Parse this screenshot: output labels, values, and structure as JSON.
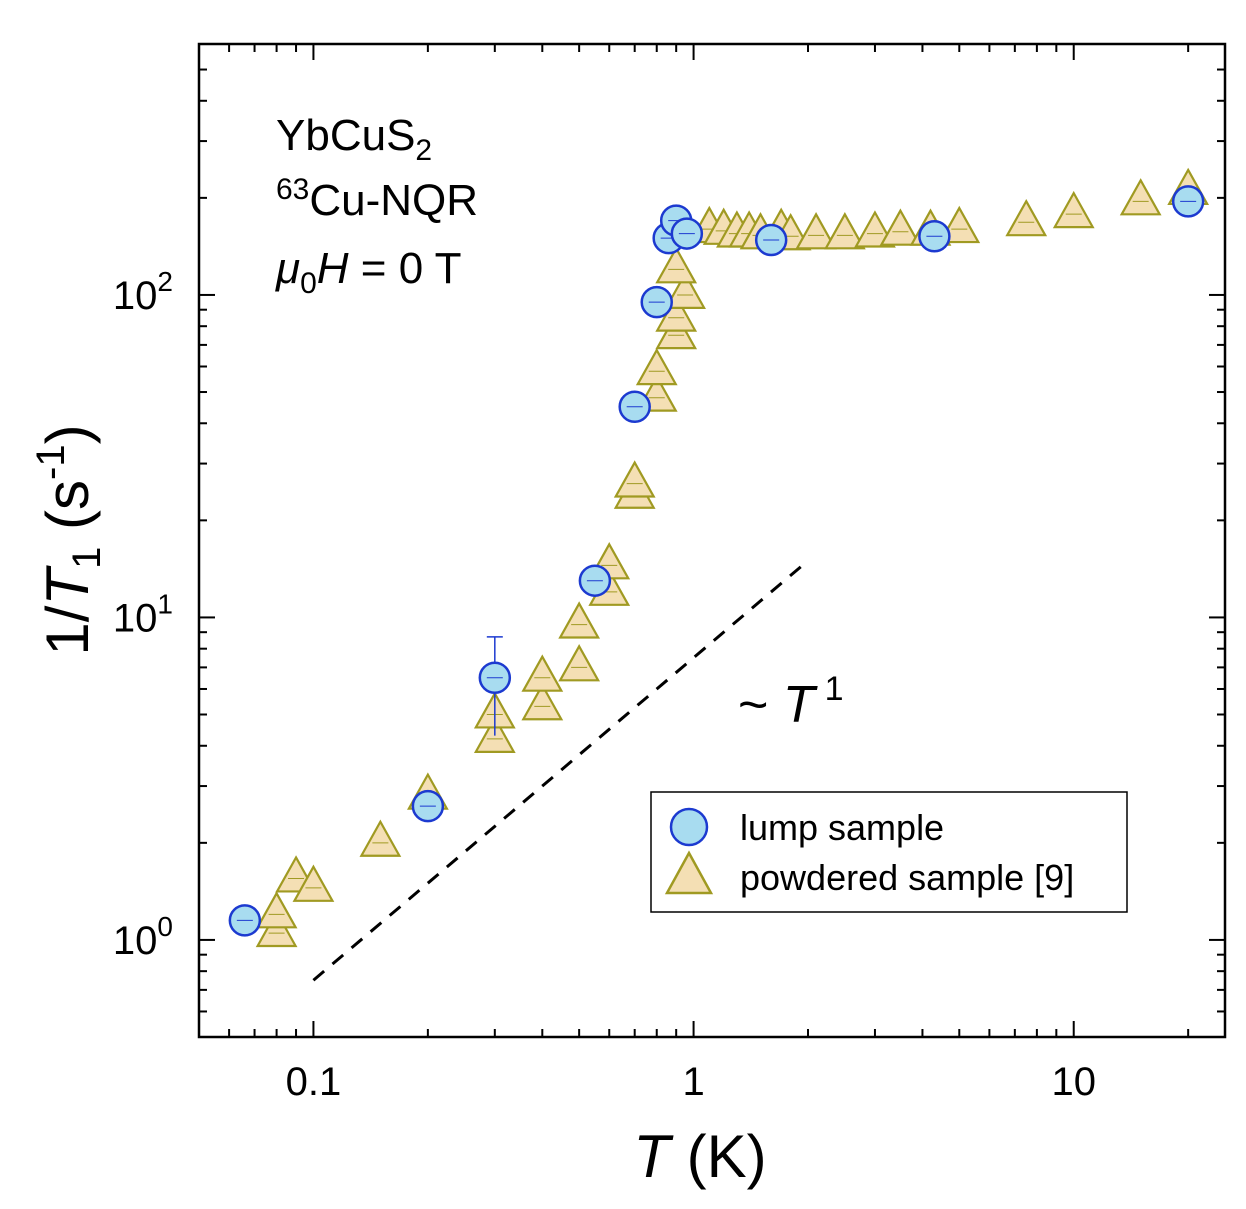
{
  "chart_data": {
    "type": "scatter",
    "x_scale": "log",
    "y_scale": "log",
    "xlim": [
      0.05,
      25
    ],
    "ylim": [
      0.5,
      600
    ],
    "xticks": [
      {
        "value": 0.1,
        "label": "0.1"
      },
      {
        "value": 1,
        "label": "1"
      },
      {
        "value": 10,
        "label": "10"
      }
    ],
    "yticks": [
      {
        "value": 1,
        "base": "10",
        "exp": "0"
      },
      {
        "value": 10,
        "base": "10",
        "exp": "1"
      },
      {
        "value": 100,
        "base": "10",
        "exp": "2"
      }
    ],
    "xlabel": {
      "var": "T",
      "unit": "(K)"
    },
    "ylabel": {
      "prefix": "1/",
      "var": "T",
      "sub": "1",
      "unit_pre": "(s",
      "unit_exp": "-1",
      "unit_post": ")"
    },
    "annotation_lines": [
      {
        "main": "YbCuS",
        "sub": "2"
      },
      {
        "sup": "63",
        "main": "Cu-NQR"
      },
      {
        "var": "μ",
        "sub": "0",
        "var2": "H",
        "rest": " = 0 T"
      }
    ],
    "guide_line": {
      "style": "dashed",
      "color": "#000000",
      "label_prefix": "~ ",
      "label_var": "T",
      "label_exp": "1",
      "points": [
        [
          0.1,
          0.75
        ],
        [
          2.0,
          15.0
        ]
      ]
    },
    "legend": {
      "position": "bottom-right"
    },
    "series": [
      {
        "name": "lump sample",
        "marker": "circle",
        "fill": "#a8dcf0",
        "stroke": "#1c3ad0",
        "points": [
          {
            "x": 0.066,
            "y": 1.15
          },
          {
            "x": 0.2,
            "y": 2.6
          },
          {
            "x": 0.3,
            "y": 6.5,
            "yerr": 2.2
          },
          {
            "x": 0.55,
            "y": 13
          },
          {
            "x": 0.7,
            "y": 45
          },
          {
            "x": 0.8,
            "y": 95
          },
          {
            "x": 0.86,
            "y": 150
          },
          {
            "x": 0.9,
            "y": 170
          },
          {
            "x": 0.96,
            "y": 155
          },
          {
            "x": 1.6,
            "y": 148
          },
          {
            "x": 4.3,
            "y": 152
          },
          {
            "x": 20,
            "y": 195
          }
        ]
      },
      {
        "name": "powdered sample [9]",
        "marker": "triangle",
        "fill": "#f4dfb4",
        "stroke": "#a09a22",
        "points": [
          {
            "x": 0.08,
            "y": 1.05
          },
          {
            "x": 0.08,
            "y": 1.2
          },
          {
            "x": 0.09,
            "y": 1.55
          },
          {
            "x": 0.1,
            "y": 1.45
          },
          {
            "x": 0.15,
            "y": 2.0
          },
          {
            "x": 0.2,
            "y": 2.8
          },
          {
            "x": 0.3,
            "y": 4.2
          },
          {
            "x": 0.3,
            "y": 5.0
          },
          {
            "x": 0.4,
            "y": 5.3
          },
          {
            "x": 0.4,
            "y": 6.5
          },
          {
            "x": 0.5,
            "y": 7.0
          },
          {
            "x": 0.5,
            "y": 9.5
          },
          {
            "x": 0.6,
            "y": 12.0
          },
          {
            "x": 0.6,
            "y": 14.5
          },
          {
            "x": 0.7,
            "y": 24
          },
          {
            "x": 0.7,
            "y": 26
          },
          {
            "x": 0.8,
            "y": 48
          },
          {
            "x": 0.8,
            "y": 58
          },
          {
            "x": 0.9,
            "y": 75
          },
          {
            "x": 0.9,
            "y": 85
          },
          {
            "x": 0.95,
            "y": 100
          },
          {
            "x": 0.9,
            "y": 120
          },
          {
            "x": 1.1,
            "y": 160
          },
          {
            "x": 1.2,
            "y": 158
          },
          {
            "x": 1.3,
            "y": 155
          },
          {
            "x": 1.4,
            "y": 155
          },
          {
            "x": 1.5,
            "y": 153
          },
          {
            "x": 1.7,
            "y": 158
          },
          {
            "x": 1.8,
            "y": 152
          },
          {
            "x": 2.1,
            "y": 153
          },
          {
            "x": 2.5,
            "y": 153
          },
          {
            "x": 3.0,
            "y": 155
          },
          {
            "x": 3.5,
            "y": 157
          },
          {
            "x": 4.2,
            "y": 157
          },
          {
            "x": 5.0,
            "y": 160
          },
          {
            "x": 7.5,
            "y": 168
          },
          {
            "x": 10,
            "y": 178
          },
          {
            "x": 15,
            "y": 195
          },
          {
            "x": 20,
            "y": 210
          }
        ]
      }
    ]
  }
}
